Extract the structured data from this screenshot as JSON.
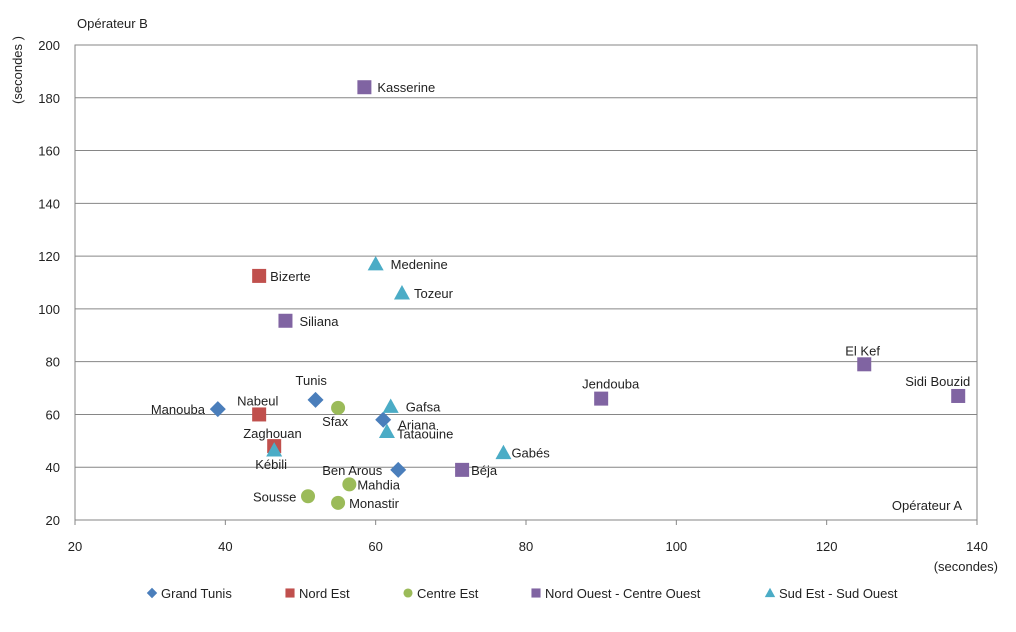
{
  "chart_data": {
    "type": "scatter",
    "title": "",
    "xlabel": "(secondes)",
    "ylabel": "(secondes )",
    "corner_labels": {
      "y_axis": "Opérateur B",
      "x_axis": "Opérateur A"
    },
    "xlim": [
      20,
      140
    ],
    "ylim": [
      20,
      200
    ],
    "x_ticks": [
      20,
      40,
      60,
      80,
      100,
      120,
      140
    ],
    "y_ticks": [
      20,
      40,
      60,
      80,
      100,
      120,
      140,
      160,
      180,
      200
    ],
    "grid": "horizontal",
    "legend_position": "bottom",
    "series": [
      {
        "name": "Grand Tunis",
        "marker": "diamond",
        "color": "#4a7ebb",
        "points": [
          {
            "label": "Manouba",
            "x": 39,
            "y": 62
          },
          {
            "label": "Tunis",
            "x": 52,
            "y": 65.5
          },
          {
            "label": "Ariana",
            "x": 61,
            "y": 58
          },
          {
            "label": "Ben Arous",
            "x": 63,
            "y": 39
          }
        ]
      },
      {
        "name": "Nord Est",
        "marker": "square",
        "color": "#c0504d",
        "points": [
          {
            "label": "Bizerte",
            "x": 44.5,
            "y": 112.5
          },
          {
            "label": "Nabeul",
            "x": 44.5,
            "y": 60
          },
          {
            "label": "Zaghouan",
            "x": 46.5,
            "y": 48
          }
        ]
      },
      {
        "name": "Centre Est",
        "marker": "circle",
        "color": "#9bbb59",
        "points": [
          {
            "label": "Sfax",
            "x": 55,
            "y": 62.5
          },
          {
            "label": "Mahdia",
            "x": 56.5,
            "y": 33.5
          },
          {
            "label": "Sousse",
            "x": 51,
            "y": 29
          },
          {
            "label": "Monastir",
            "x": 55,
            "y": 26.5
          }
        ]
      },
      {
        "name": "Nord Ouest - Centre Ouest",
        "marker": "square",
        "color": "#8064a2",
        "points": [
          {
            "label": "Kasserine",
            "x": 58.5,
            "y": 184
          },
          {
            "label": "Siliana",
            "x": 48,
            "y": 95.5
          },
          {
            "label": "Jendouba",
            "x": 90,
            "y": 66
          },
          {
            "label": "Béja",
            "x": 71.5,
            "y": 39
          },
          {
            "label": "El Kef",
            "x": 125,
            "y": 79
          },
          {
            "label": "Sidi Bouzid",
            "x": 137.5,
            "y": 67
          }
        ]
      },
      {
        "name": "Sud Est - Sud Ouest",
        "marker": "triangle",
        "color": "#4bacc6",
        "points": [
          {
            "label": "Medenine",
            "x": 60,
            "y": 117
          },
          {
            "label": "Tozeur",
            "x": 63.5,
            "y": 106
          },
          {
            "label": "Gafsa",
            "x": 62,
            "y": 63
          },
          {
            "label": "Tataouine",
            "x": 61.5,
            "y": 53.5
          },
          {
            "label": "Gabés",
            "x": 77,
            "y": 45.5
          },
          {
            "label": "Kébili",
            "x": 46.5,
            "y": 46.5
          }
        ]
      }
    ]
  }
}
